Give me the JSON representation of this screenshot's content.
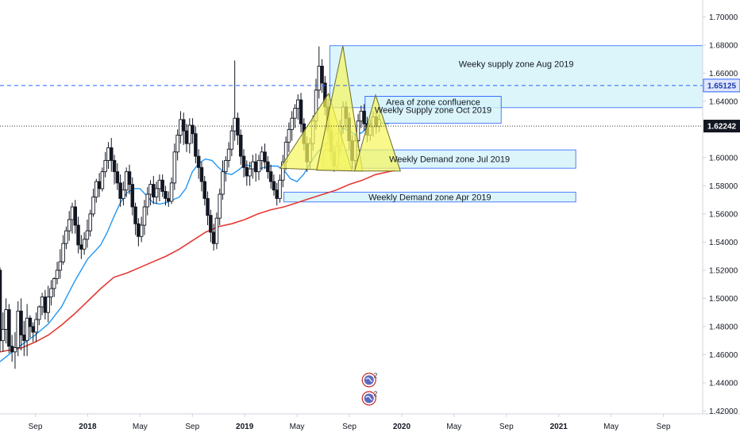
{
  "chart_data": {
    "type": "candlestick",
    "instrument_scale": "price",
    "y_ticks": [
      "1.70000",
      "1.68000",
      "1.66000",
      "1.64000",
      "1.62000",
      "1.60000",
      "1.58000",
      "1.56000",
      "1.54000",
      "1.52000",
      "1.50000",
      "1.48000",
      "1.46000",
      "1.44000",
      "1.42000"
    ],
    "ylim": [
      1.418,
      1.712
    ],
    "x_ticks": [
      {
        "label": "Sep",
        "t": 0
      },
      {
        "label": "2018",
        "t": 4
      },
      {
        "label": "May",
        "t": 8
      },
      {
        "label": "Sep",
        "t": 12
      },
      {
        "label": "2019",
        "t": 16
      },
      {
        "label": "May",
        "t": 20
      },
      {
        "label": "Sep",
        "t": 24
      },
      {
        "label": "2020",
        "t": 28
      },
      {
        "label": "May",
        "t": 32
      },
      {
        "label": "Sep",
        "t": 36
      },
      {
        "label": "2021",
        "t": 40
      },
      {
        "label": "May",
        "t": 44
      },
      {
        "label": "Sep",
        "t": 48
      }
    ],
    "tick_bold": [
      "2018",
      "2019",
      "2020",
      "2021"
    ],
    "xlim_months": [
      -2.7,
      51.0
    ],
    "last_price": "1.62242",
    "last_price_value": 1.62242,
    "dashed_level": "1.65125",
    "dashed_level_value": 1.65125,
    "zones": [
      {
        "label": "Weeky supply zone Aug 2019",
        "t0": 22.5,
        "t1": 51.0,
        "y_low": 1.6355,
        "y_high": 1.6795
      },
      {
        "label": "Area of zone confluence",
        "t0": 25.2,
        "t1": 35.6,
        "y_low": 1.6355,
        "y_high": 1.6435
      },
      {
        "label": "Weekly Supply zone Oct 2019",
        "t0": 25.2,
        "t1": 35.6,
        "y_low": 1.6245,
        "y_high": 1.6435
      },
      {
        "label": "Weekly Demand zone Jul 2019",
        "t0": 22.0,
        "t1": 41.3,
        "y_low": 1.5925,
        "y_high": 1.6055
      },
      {
        "label": "Weekly Demand zone Apr 2019",
        "t0": 19.0,
        "t1": 41.3,
        "y_low": 1.5685,
        "y_high": 1.5755
      }
    ],
    "pattern_triangles": [
      {
        "points": [
          [
            18.7,
            1.5925
          ],
          [
            22.4,
            1.6455
          ],
          [
            24.2,
            1.5905
          ]
        ]
      },
      {
        "points": [
          [
            21.5,
            1.591
          ],
          [
            23.5,
            1.6795
          ],
          [
            25.0,
            1.5905
          ]
        ]
      },
      {
        "points": [
          [
            24.4,
            1.5905
          ],
          [
            26.0,
            1.6445
          ],
          [
            27.9,
            1.5905
          ]
        ]
      }
    ],
    "blue_ma": [
      [
        -2.7,
        1.455
      ],
      [
        -1.5,
        1.464
      ],
      [
        0,
        1.474
      ],
      [
        1,
        1.482
      ],
      [
        2,
        1.494
      ],
      [
        3,
        1.512
      ],
      [
        4,
        1.528
      ],
      [
        4.5,
        1.533
      ],
      [
        5,
        1.538
      ],
      [
        5.5,
        1.547
      ],
      [
        6,
        1.558
      ],
      [
        6.5,
        1.568
      ],
      [
        7,
        1.575
      ],
      [
        7.5,
        1.578
      ],
      [
        8,
        1.578
      ],
      [
        8.5,
        1.573
      ],
      [
        9,
        1.568
      ],
      [
        9.5,
        1.567
      ],
      [
        10,
        1.568
      ],
      [
        11,
        1.572
      ],
      [
        11.5,
        1.578
      ],
      [
        12,
        1.59
      ],
      [
        12.5,
        1.596
      ],
      [
        13,
        1.599
      ],
      [
        13.5,
        1.598
      ],
      [
        14,
        1.593
      ],
      [
        14.5,
        1.589
      ],
      [
        15,
        1.588
      ],
      [
        15.5,
        1.591
      ],
      [
        16,
        1.595
      ],
      [
        16.5,
        1.594
      ],
      [
        17,
        1.592
      ],
      [
        17.5,
        1.593
      ],
      [
        18,
        1.594
      ],
      [
        18.5,
        1.594
      ],
      [
        19,
        1.591
      ],
      [
        19.5,
        1.585
      ],
      [
        20,
        1.583
      ],
      [
        20.5,
        1.588
      ],
      [
        21,
        1.596
      ],
      [
        21.5,
        1.603
      ],
      [
        22,
        1.608
      ],
      [
        22.5,
        1.612
      ],
      [
        23,
        1.617
      ],
      [
        23.5,
        1.621
      ],
      [
        24,
        1.619
      ],
      [
        24.5,
        1.616
      ],
      [
        25,
        1.618
      ],
      [
        25.5,
        1.623
      ],
      [
        26,
        1.625
      ],
      [
        27,
        1.624
      ]
    ],
    "red_ma": [
      [
        -2.7,
        1.462
      ],
      [
        -1,
        1.465
      ],
      [
        0,
        1.469
      ],
      [
        1,
        1.474
      ],
      [
        2,
        1.481
      ],
      [
        3,
        1.489
      ],
      [
        4,
        1.498
      ],
      [
        5,
        1.507
      ],
      [
        6,
        1.515
      ],
      [
        7,
        1.518
      ],
      [
        8,
        1.522
      ],
      [
        9,
        1.526
      ],
      [
        10,
        1.53
      ],
      [
        11,
        1.535
      ],
      [
        12,
        1.541
      ],
      [
        13,
        1.547
      ],
      [
        14,
        1.551
      ],
      [
        15,
        1.553
      ],
      [
        16,
        1.556
      ],
      [
        17,
        1.56
      ],
      [
        18,
        1.563
      ],
      [
        19,
        1.565
      ],
      [
        20,
        1.568
      ],
      [
        21,
        1.571
      ],
      [
        22,
        1.574
      ],
      [
        23,
        1.577
      ],
      [
        24,
        1.581
      ],
      [
        25,
        1.584
      ],
      [
        26,
        1.588
      ],
      [
        27,
        1.59
      ],
      [
        27.5,
        1.591
      ]
    ],
    "candles": [
      [
        -2.7,
        1.52,
        1.47,
        1.522,
        1.462
      ],
      [
        -2.47,
        1.47,
        1.478,
        1.49,
        1.462
      ],
      [
        -2.24,
        1.478,
        1.492,
        1.5,
        1.468
      ],
      [
        -2.01,
        1.492,
        1.466,
        1.496,
        1.461
      ],
      [
        -1.78,
        1.466,
        1.462,
        1.474,
        1.455
      ],
      [
        -1.55,
        1.462,
        1.465,
        1.476,
        1.45
      ],
      [
        -1.32,
        1.465,
        1.491,
        1.498,
        1.459
      ],
      [
        -1.09,
        1.491,
        1.474,
        1.5,
        1.463
      ],
      [
        -0.86,
        1.474,
        1.47,
        1.484,
        1.459
      ],
      [
        -0.63,
        1.47,
        1.486,
        1.496,
        1.459
      ],
      [
        -0.4,
        1.486,
        1.48,
        1.488,
        1.472
      ],
      [
        -0.17,
        1.48,
        1.476,
        1.483,
        1.469
      ],
      [
        0.06,
        1.476,
        1.485,
        1.49,
        1.469
      ],
      [
        0.29,
        1.485,
        1.494,
        1.495,
        1.481
      ],
      [
        0.52,
        1.494,
        1.501,
        1.504,
        1.488
      ],
      [
        0.75,
        1.501,
        1.49,
        1.506,
        1.485
      ],
      [
        0.98,
        1.49,
        1.501,
        1.509,
        1.483
      ],
      [
        1.21,
        1.501,
        1.507,
        1.513,
        1.495
      ],
      [
        1.44,
        1.507,
        1.514,
        1.515,
        1.501
      ],
      [
        1.67,
        1.514,
        1.52,
        1.526,
        1.51
      ],
      [
        1.9,
        1.52,
        1.526,
        1.535,
        1.514
      ],
      [
        2.13,
        1.526,
        1.539,
        1.545,
        1.524
      ],
      [
        2.36,
        1.539,
        1.548,
        1.551,
        1.535
      ],
      [
        2.59,
        1.548,
        1.556,
        1.562,
        1.541
      ],
      [
        2.82,
        1.556,
        1.565,
        1.568,
        1.546
      ],
      [
        3.05,
        1.565,
        1.552,
        1.57,
        1.546
      ],
      [
        3.28,
        1.552,
        1.538,
        1.558,
        1.532
      ],
      [
        3.51,
        1.538,
        1.535,
        1.545,
        1.528
      ],
      [
        3.74,
        1.535,
        1.542,
        1.547,
        1.531
      ],
      [
        3.97,
        1.542,
        1.548,
        1.556,
        1.536
      ],
      [
        4.2,
        1.548,
        1.56,
        1.563,
        1.544
      ],
      [
        4.43,
        1.56,
        1.572,
        1.578,
        1.558
      ],
      [
        4.66,
        1.572,
        1.583,
        1.585,
        1.568
      ],
      [
        4.89,
        1.583,
        1.578,
        1.589,
        1.572
      ],
      [
        5.12,
        1.578,
        1.59,
        1.593,
        1.576
      ],
      [
        5.35,
        1.59,
        1.598,
        1.604,
        1.586
      ],
      [
        5.58,
        1.598,
        1.607,
        1.611,
        1.592
      ],
      [
        5.81,
        1.607,
        1.598,
        1.614,
        1.59
      ],
      [
        6.04,
        1.598,
        1.59,
        1.602,
        1.581
      ],
      [
        6.27,
        1.59,
        1.582,
        1.596,
        1.577
      ],
      [
        6.5,
        1.582,
        1.571,
        1.588,
        1.565
      ],
      [
        6.73,
        1.571,
        1.577,
        1.583,
        1.566
      ],
      [
        6.96,
        1.577,
        1.59,
        1.593,
        1.572
      ],
      [
        7.19,
        1.59,
        1.581,
        1.595,
        1.574
      ],
      [
        7.42,
        1.581,
        1.565,
        1.586,
        1.559
      ],
      [
        7.65,
        1.565,
        1.553,
        1.568,
        1.545
      ],
      [
        7.88,
        1.553,
        1.544,
        1.557,
        1.537
      ],
      [
        8.11,
        1.544,
        1.552,
        1.558,
        1.54
      ],
      [
        8.34,
        1.552,
        1.565,
        1.57,
        1.545
      ],
      [
        8.57,
        1.565,
        1.574,
        1.579,
        1.559
      ],
      [
        8.8,
        1.574,
        1.581,
        1.584,
        1.566
      ],
      [
        9.03,
        1.581,
        1.572,
        1.587,
        1.567
      ],
      [
        9.26,
        1.572,
        1.578,
        1.583,
        1.567
      ],
      [
        9.49,
        1.578,
        1.584,
        1.588,
        1.569
      ],
      [
        9.72,
        1.584,
        1.576,
        1.588,
        1.572
      ],
      [
        9.95,
        1.576,
        1.571,
        1.58,
        1.566
      ],
      [
        10.18,
        1.571,
        1.569,
        1.576,
        1.565
      ],
      [
        10.41,
        1.569,
        1.582,
        1.586,
        1.567
      ],
      [
        10.64,
        1.582,
        1.604,
        1.61,
        1.577
      ],
      [
        10.87,
        1.604,
        1.616,
        1.62,
        1.598
      ],
      [
        11.1,
        1.616,
        1.627,
        1.633,
        1.61
      ],
      [
        11.33,
        1.627,
        1.619,
        1.632,
        1.609
      ],
      [
        11.56,
        1.619,
        1.61,
        1.624,
        1.604
      ],
      [
        11.79,
        1.61,
        1.623,
        1.628,
        1.603
      ],
      [
        12.02,
        1.623,
        1.617,
        1.628,
        1.61
      ],
      [
        12.25,
        1.617,
        1.601,
        1.622,
        1.596
      ],
      [
        12.48,
        1.601,
        1.593,
        1.606,
        1.585
      ],
      [
        12.71,
        1.593,
        1.583,
        1.597,
        1.576
      ],
      [
        12.94,
        1.583,
        1.571,
        1.587,
        1.566
      ],
      [
        13.17,
        1.571,
        1.559,
        1.576,
        1.552
      ],
      [
        13.4,
        1.559,
        1.547,
        1.563,
        1.54
      ],
      [
        13.63,
        1.547,
        1.539,
        1.553,
        1.534
      ],
      [
        13.86,
        1.539,
        1.557,
        1.561,
        1.535
      ],
      [
        14.09,
        1.557,
        1.574,
        1.578,
        1.552
      ],
      [
        14.32,
        1.574,
        1.59,
        1.598,
        1.57
      ],
      [
        14.55,
        1.59,
        1.598,
        1.601,
        1.583
      ],
      [
        14.78,
        1.598,
        1.606,
        1.611,
        1.593
      ],
      [
        15.01,
        1.606,
        1.619,
        1.623,
        1.601
      ],
      [
        15.24,
        1.619,
        1.628,
        1.669,
        1.612
      ],
      [
        15.47,
        1.628,
        1.616,
        1.632,
        1.609
      ],
      [
        15.7,
        1.616,
        1.601,
        1.62,
        1.595
      ],
      [
        15.93,
        1.601,
        1.593,
        1.606,
        1.586
      ],
      [
        16.16,
        1.593,
        1.587,
        1.598,
        1.58
      ],
      [
        16.39,
        1.587,
        1.592,
        1.597,
        1.58
      ],
      [
        16.62,
        1.592,
        1.597,
        1.602,
        1.585
      ],
      [
        16.85,
        1.597,
        1.59,
        1.603,
        1.583
      ],
      [
        17.08,
        1.59,
        1.598,
        1.602,
        1.584
      ],
      [
        17.31,
        1.598,
        1.604,
        1.608,
        1.591
      ],
      [
        17.54,
        1.604,
        1.597,
        1.61,
        1.592
      ],
      [
        17.77,
        1.597,
        1.59,
        1.601,
        1.585
      ],
      [
        18.0,
        1.59,
        1.583,
        1.595,
        1.578
      ],
      [
        18.23,
        1.583,
        1.577,
        1.588,
        1.573
      ],
      [
        18.46,
        1.577,
        1.571,
        1.582,
        1.566
      ],
      [
        18.69,
        1.571,
        1.584,
        1.588,
        1.568
      ],
      [
        18.92,
        1.584,
        1.597,
        1.602,
        1.579
      ],
      [
        19.15,
        1.597,
        1.611,
        1.615,
        1.591
      ],
      [
        19.38,
        1.611,
        1.62,
        1.625,
        1.604
      ],
      [
        19.61,
        1.62,
        1.628,
        1.633,
        1.612
      ],
      [
        19.84,
        1.628,
        1.635,
        1.638,
        1.621
      ],
      [
        20.07,
        1.635,
        1.641,
        1.645,
        1.627
      ],
      [
        20.3,
        1.641,
        1.624,
        1.646,
        1.618
      ],
      [
        20.53,
        1.624,
        1.61,
        1.628,
        1.605
      ],
      [
        20.76,
        1.61,
        1.597,
        1.615,
        1.59
      ],
      [
        20.99,
        1.597,
        1.61,
        1.614,
        1.592
      ],
      [
        21.22,
        1.61,
        1.626,
        1.63,
        1.605
      ],
      [
        21.45,
        1.626,
        1.648,
        1.656,
        1.62
      ],
      [
        21.68,
        1.648,
        1.665,
        1.679,
        1.642
      ],
      [
        21.91,
        1.665,
        1.653,
        1.67,
        1.646
      ],
      [
        22.14,
        1.653,
        1.636,
        1.658,
        1.63
      ],
      [
        22.37,
        1.636,
        1.619,
        1.642,
        1.613
      ],
      [
        22.6,
        1.619,
        1.604,
        1.624,
        1.598
      ],
      [
        22.83,
        1.604,
        1.594,
        1.609,
        1.59
      ],
      [
        23.06,
        1.594,
        1.608,
        1.612,
        1.591
      ],
      [
        23.29,
        1.608,
        1.622,
        1.627,
        1.603
      ],
      [
        23.52,
        1.622,
        1.636,
        1.64,
        1.617
      ],
      [
        23.75,
        1.636,
        1.628,
        1.64,
        1.621
      ],
      [
        23.98,
        1.628,
        1.612,
        1.632,
        1.606
      ],
      [
        24.21,
        1.612,
        1.598,
        1.616,
        1.592
      ],
      [
        24.44,
        1.598,
        1.612,
        1.617,
        1.593
      ],
      [
        24.67,
        1.612,
        1.626,
        1.631,
        1.607
      ],
      [
        24.9,
        1.626,
        1.633,
        1.637,
        1.621
      ],
      [
        25.13,
        1.633,
        1.624,
        1.638,
        1.619
      ],
      [
        25.36,
        1.624,
        1.616,
        1.629,
        1.611
      ],
      [
        25.59,
        1.616,
        1.622,
        1.627,
        1.612
      ],
      [
        25.82,
        1.622,
        1.629,
        1.633,
        1.615
      ],
      [
        26.05,
        1.629,
        1.622,
        1.632,
        1.617
      ],
      [
        26.28,
        1.622,
        1.627,
        1.631,
        1.618
      ]
    ],
    "event_markers": [
      {
        "t": 25.5,
        "y": 1.442,
        "count": "2"
      },
      {
        "t": 25.5,
        "y": 1.429,
        "count": "2"
      }
    ],
    "colors": {
      "zone_fill": "#d6f3f9",
      "zone_stroke": "#2962ff",
      "triangle_fill": "#f5f55e",
      "triangle_stroke": "#6b6b2a",
      "blue_ma": "#2196f3",
      "red_ma": "#e53935",
      "candle": "#131722",
      "dashed_level": "#2962ff",
      "last_price_bg": "#131722",
      "axis_text": "#131722",
      "grid_tick": "#cfd3dc"
    }
  }
}
